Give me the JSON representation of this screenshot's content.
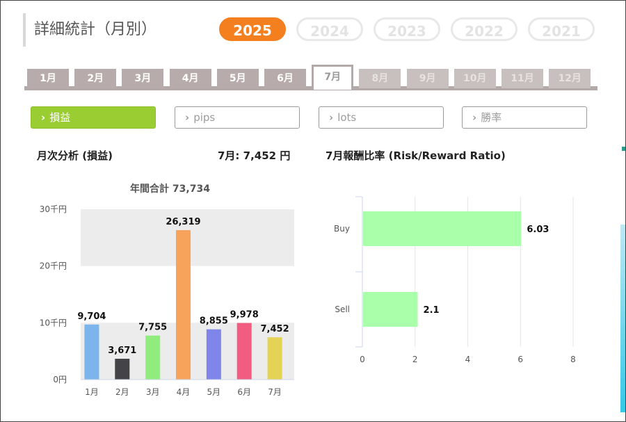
{
  "header": {
    "title": "詳細統計（月別）"
  },
  "years": [
    {
      "label": "2025",
      "active": true
    },
    {
      "label": "2024",
      "active": false
    },
    {
      "label": "2023",
      "active": false
    },
    {
      "label": "2022",
      "active": false
    },
    {
      "label": "2021",
      "active": false
    }
  ],
  "months": [
    {
      "label": "1月",
      "state": "enabled"
    },
    {
      "label": "2月",
      "state": "enabled"
    },
    {
      "label": "3月",
      "state": "enabled"
    },
    {
      "label": "4月",
      "state": "enabled"
    },
    {
      "label": "5月",
      "state": "enabled"
    },
    {
      "label": "6月",
      "state": "enabled"
    },
    {
      "label": "7月",
      "state": "active"
    },
    {
      "label": "8月",
      "state": "disabled"
    },
    {
      "label": "9月",
      "state": "disabled"
    },
    {
      "label": "10月",
      "state": "disabled"
    },
    {
      "label": "11月",
      "state": "disabled"
    },
    {
      "label": "12月",
      "state": "disabled"
    }
  ],
  "filters": [
    {
      "label": "損益",
      "active": true,
      "chevron": "›"
    },
    {
      "label": "pips",
      "active": false,
      "chevron": "›"
    },
    {
      "label": "lots",
      "active": false,
      "chevron": "›"
    },
    {
      "label": "勝率",
      "active": false,
      "chevron": "›"
    }
  ],
  "analysis": {
    "left_title": "月次分析 (損益)",
    "current_value": "7月:  7,452 円",
    "right_title": "7月報酬比率 (Risk/Reward Ratio)"
  },
  "chart_data": [
    {
      "type": "bar",
      "title": "年間合計 73,734",
      "categories": [
        "1月",
        "2月",
        "3月",
        "4月",
        "5月",
        "6月",
        "7月"
      ],
      "values": [
        9704,
        3671,
        7755,
        26319,
        8855,
        9978,
        7452
      ],
      "value_labels": [
        "9,704",
        "3,671",
        "7,755",
        "26,319",
        "8,855",
        "9,978",
        "7,452"
      ],
      "colors": [
        "#7cb5ec",
        "#434348",
        "#90ed7d",
        "#f7a35c",
        "#8085e9",
        "#f15c80",
        "#e4d354"
      ],
      "yticks": [
        "0円",
        "10千円",
        "20千円",
        "30千円"
      ],
      "ylim": [
        0,
        30000
      ],
      "grid_bands": true
    },
    {
      "type": "bar",
      "orientation": "horizontal",
      "categories": [
        "Buy",
        "Sell"
      ],
      "values": [
        6.03,
        2.1
      ],
      "value_labels": [
        "6.03",
        "2.1"
      ],
      "color": "#aaffaa",
      "xticks": [
        "0",
        "2",
        "4",
        "6",
        "8"
      ],
      "xlim": [
        0,
        8
      ],
      "grid": true
    }
  ]
}
